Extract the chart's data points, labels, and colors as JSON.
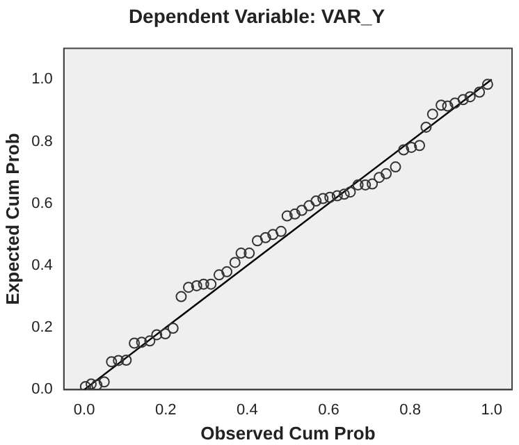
{
  "chart_data": {
    "type": "scatter",
    "title": "Dependent Variable: VAR_Y",
    "xlabel": "Observed Cum Prob",
    "ylabel": "Expected Cum Prob",
    "xlim": [
      -0.05,
      1.05
    ],
    "ylim": [
      0,
      1.1
    ],
    "xticks": [
      {
        "value": 0,
        "label": "0.0"
      },
      {
        "value": 0.2,
        "label": "0.2"
      },
      {
        "value": 0.4,
        "label": "0.4"
      },
      {
        "value": 0.6,
        "label": "0.6"
      },
      {
        "value": 0.8,
        "label": "0.8"
      },
      {
        "value": 1,
        "label": "1.0"
      }
    ],
    "yticks": [
      {
        "value": 0,
        "label": "0.0"
      },
      {
        "value": 0.2,
        "label": "0.2"
      },
      {
        "value": 0.4,
        "label": "0.4"
      },
      {
        "value": 0.6,
        "label": "0.6"
      },
      {
        "value": 0.8,
        "label": "0.8"
      },
      {
        "value": 1,
        "label": "1.0"
      }
    ],
    "grid": false,
    "legend": false,
    "series": [
      {
        "color": "#333333",
        "marker": "circle",
        "x": [
          0.003,
          0.017,
          0.031,
          0.049,
          0.067,
          0.084,
          0.103,
          0.123,
          0.141,
          0.161,
          0.178,
          0.199,
          0.218,
          0.238,
          0.256,
          0.276,
          0.293,
          0.311,
          0.331,
          0.35,
          0.37,
          0.385,
          0.405,
          0.425,
          0.445,
          0.463,
          0.483,
          0.498,
          0.517,
          0.534,
          0.552,
          0.569,
          0.586,
          0.603,
          0.621,
          0.638,
          0.653,
          0.672,
          0.69,
          0.707,
          0.724,
          0.741,
          0.764,
          0.784,
          0.803,
          0.823,
          0.839,
          0.855,
          0.876,
          0.892,
          0.91,
          0.93,
          0.947,
          0.97,
          0.99
        ],
        "values": [
          0.01,
          0.018,
          0.015,
          0.025,
          0.09,
          0.094,
          0.095,
          0.15,
          0.153,
          0.157,
          0.177,
          0.18,
          0.198,
          0.3,
          0.33,
          0.335,
          0.34,
          0.34,
          0.37,
          0.38,
          0.41,
          0.44,
          0.44,
          0.48,
          0.49,
          0.5,
          0.51,
          0.56,
          0.566,
          0.578,
          0.593,
          0.608,
          0.616,
          0.62,
          0.625,
          0.63,
          0.637,
          0.66,
          0.66,
          0.663,
          0.684,
          0.696,
          0.718,
          0.773,
          0.781,
          0.787,
          0.846,
          0.888,
          0.917,
          0.914,
          0.924,
          0.935,
          0.944,
          0.959,
          0.984
        ]
      },
      {
        "type": "line",
        "color": "#000000",
        "marker": "none",
        "line_style": "solid",
        "x": [
          0,
          1
        ],
        "values": [
          0,
          1
        ]
      }
    ]
  }
}
